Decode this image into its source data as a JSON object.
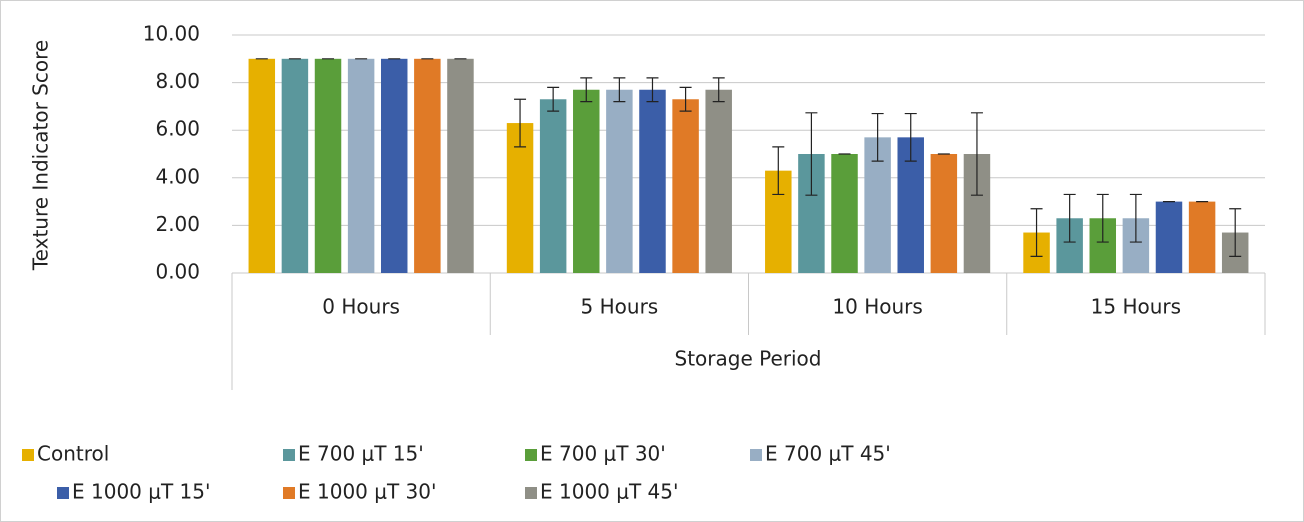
{
  "chart_data": {
    "type": "bar",
    "y_label": "Texture Indicator Score",
    "x_label": "Storage Period",
    "categories": [
      "0 Hours",
      "5 Hours",
      "10 Hours",
      "15 Hours"
    ],
    "series": [
      {
        "name": "Control",
        "color": "#e6b000",
        "values": [
          9.0,
          6.3,
          4.3,
          1.7
        ],
        "errors": [
          0,
          1.0,
          1.0,
          1.0
        ]
      },
      {
        "name": "E 700 μT 15'",
        "color": "#5b979c",
        "values": [
          9.0,
          7.3,
          5.0,
          2.3
        ],
        "errors": [
          0,
          0.5,
          1.73,
          1.0
        ]
      },
      {
        "name": "E 700 μT 30'",
        "color": "#5a9e3a",
        "values": [
          9.0,
          7.7,
          5.0,
          2.3
        ],
        "errors": [
          0,
          0.5,
          0,
          1.0
        ]
      },
      {
        "name": "E 700 μT 45'",
        "color": "#98aec4",
        "values": [
          9.0,
          7.7,
          5.7,
          2.3
        ],
        "errors": [
          0,
          0.5,
          1.0,
          1.0
        ]
      },
      {
        "name": "E 1000 μT 15'",
        "color": "#3b5ea8",
        "values": [
          9.0,
          7.7,
          5.7,
          3.0
        ],
        "errors": [
          0,
          0.5,
          1.0,
          0
        ]
      },
      {
        "name": "E 1000 μT 30'",
        "color": "#e07a26",
        "values": [
          9.0,
          7.3,
          5.0,
          3.0
        ],
        "errors": [
          0,
          0.5,
          0,
          0
        ]
      },
      {
        "name": "E 1000 μT 45'",
        "color": "#8f8f86",
        "values": [
          9.0,
          7.7,
          5.0,
          1.7
        ],
        "errors": [
          0,
          0.5,
          1.73,
          1.0
        ]
      }
    ],
    "ylim": [
      0,
      10
    ],
    "yticks": [
      {
        "value": 0,
        "label": "0.00"
      },
      {
        "value": 2,
        "label": "2.00"
      },
      {
        "value": 4,
        "label": "4.00"
      },
      {
        "value": 6,
        "label": "6.00"
      },
      {
        "value": 8,
        "label": "8.00"
      },
      {
        "value": 10,
        "label": "10.00"
      }
    ],
    "grid": true,
    "legend": "bottom"
  }
}
